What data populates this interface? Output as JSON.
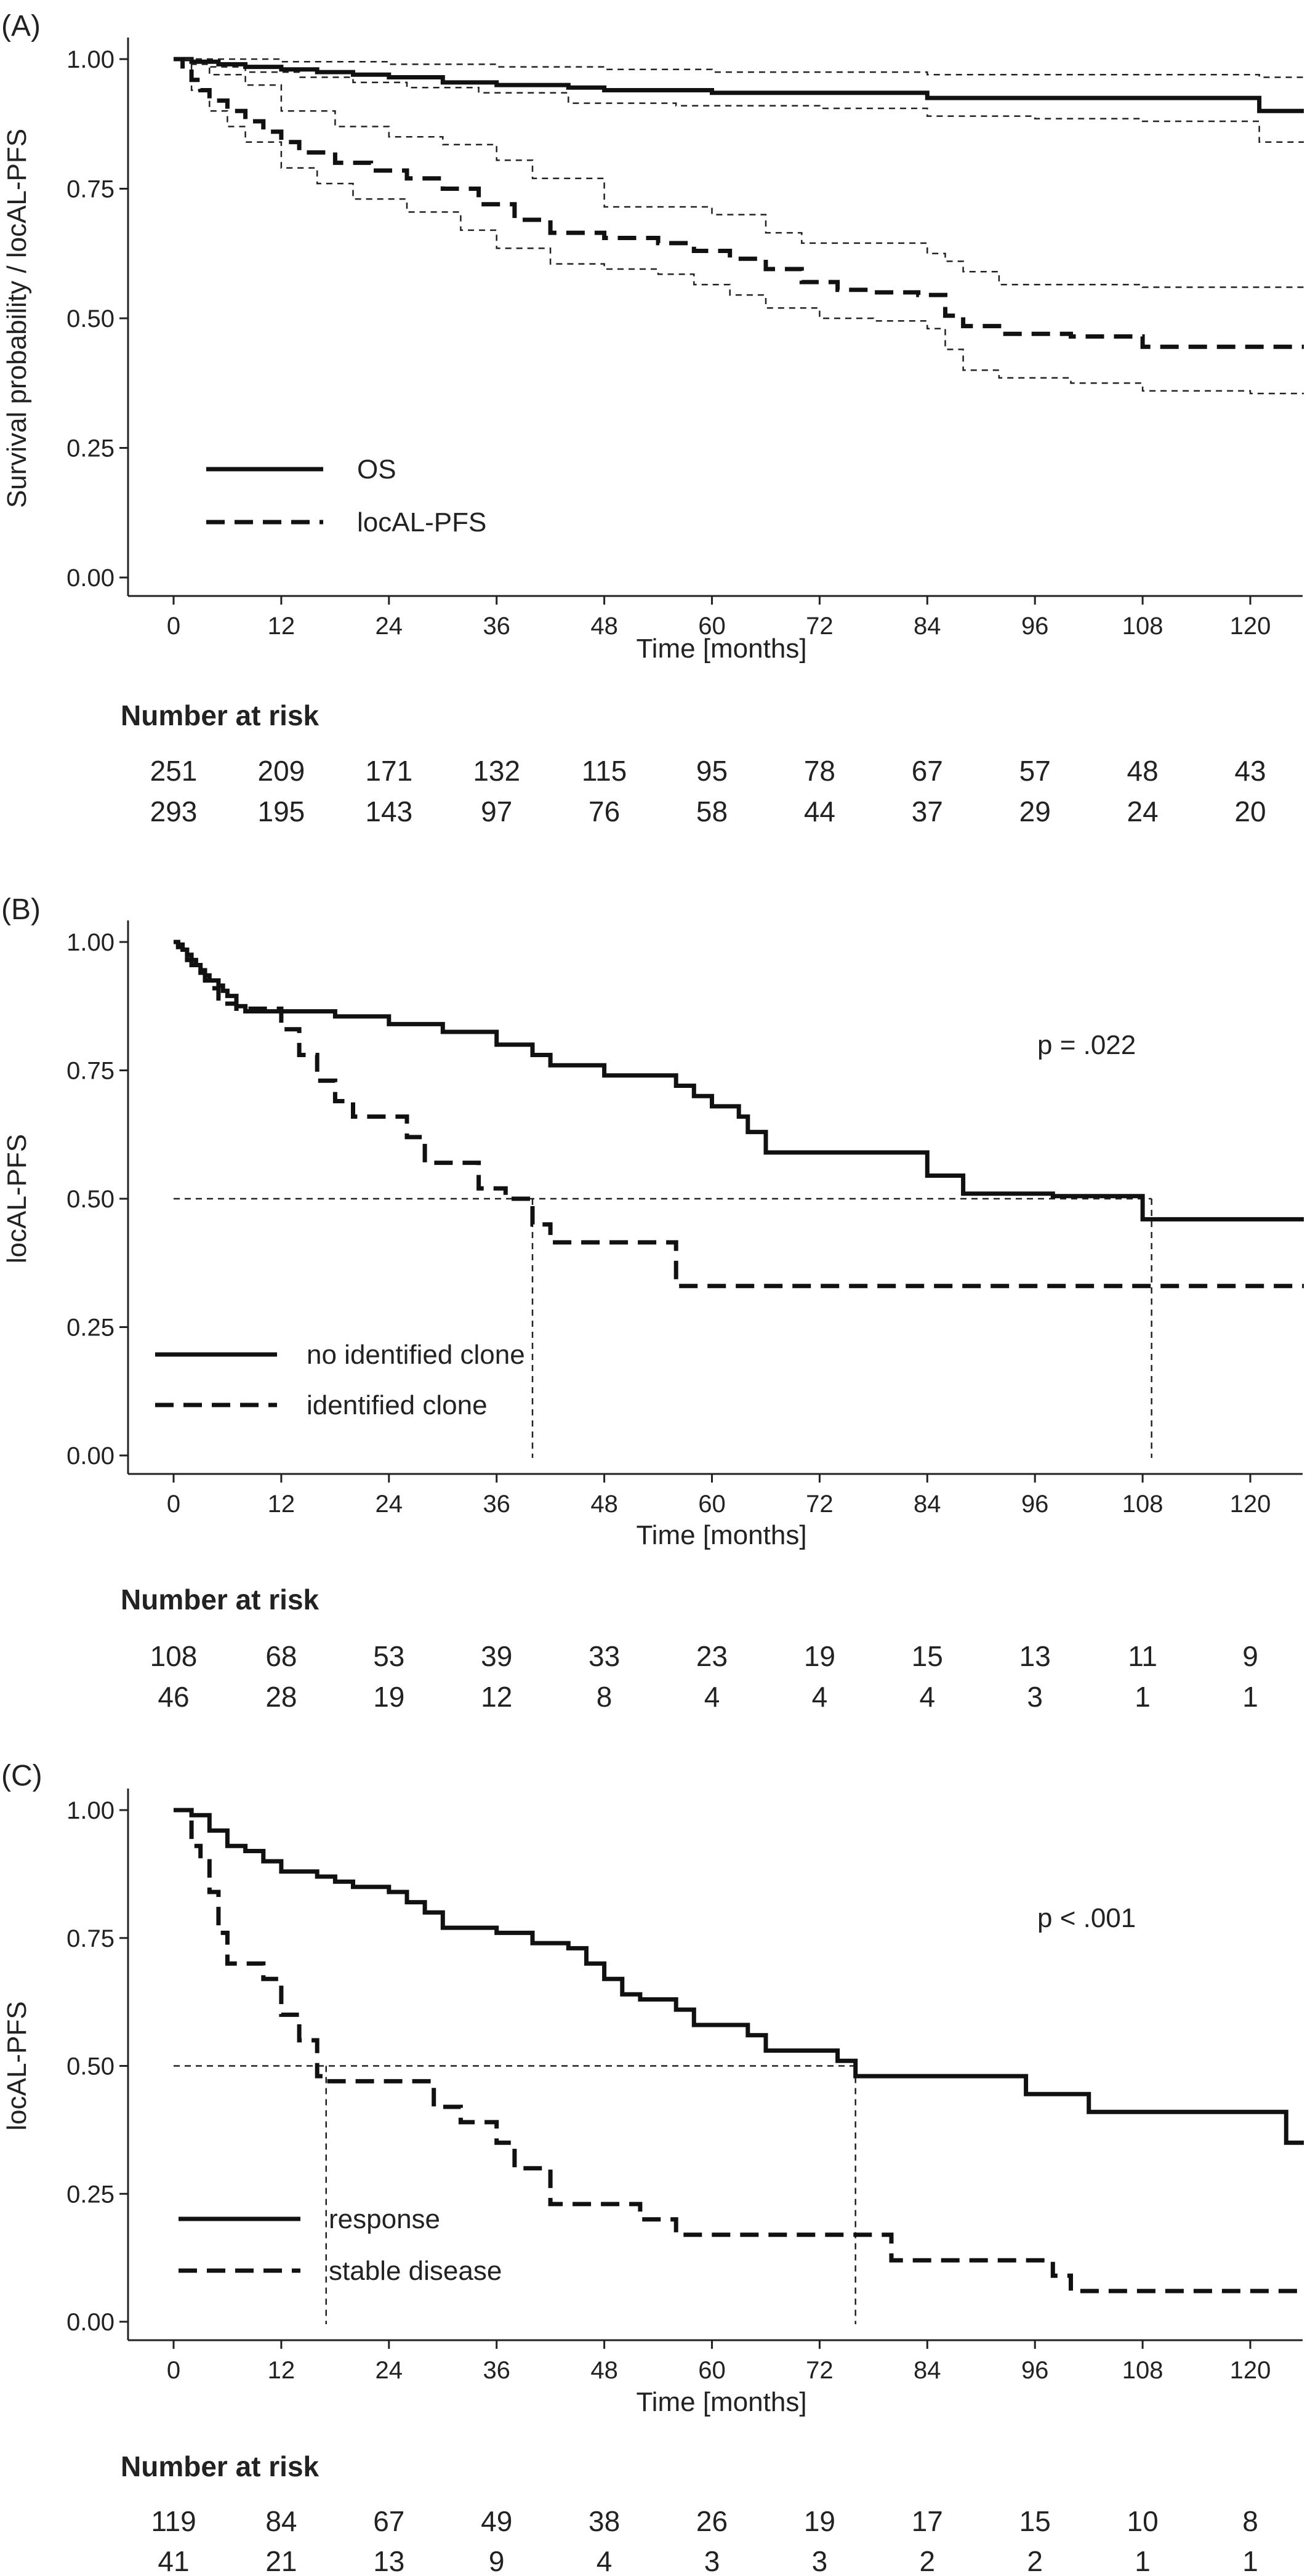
{
  "chart_data": [
    {
      "type": "line",
      "panel_label": "(A)",
      "xlabel": "Time [months]",
      "ylabel": "Survival probability / locAL-PFS",
      "xlim": [
        0,
        126
      ],
      "ylim": [
        0,
        1
      ],
      "x_ticks": [
        "0",
        "12",
        "24",
        "36",
        "48",
        "60",
        "72",
        "84",
        "96",
        "108",
        "120"
      ],
      "y_ticks": [
        "0.00",
        "0.25",
        "0.50",
        "0.75",
        "1.00"
      ],
      "grid": false,
      "legend_position": "bottom-left",
      "series": [
        {
          "name": "OS",
          "style": "solid",
          "steps": [
            [
              0,
              1.0
            ],
            [
              2,
              0.995
            ],
            [
              5,
              0.99
            ],
            [
              8,
              0.985
            ],
            [
              12,
              0.98
            ],
            [
              16,
              0.975
            ],
            [
              20,
              0.97
            ],
            [
              24,
              0.965
            ],
            [
              30,
              0.955
            ],
            [
              36,
              0.95
            ],
            [
              44,
              0.945
            ],
            [
              48,
              0.94
            ],
            [
              60,
              0.935
            ],
            [
              72,
              0.935
            ],
            [
              84,
              0.925
            ],
            [
              96,
              0.925
            ],
            [
              108,
              0.925
            ],
            [
              121,
              0.9
            ]
          ],
          "ci_lower": [
            [
              0,
              1.0
            ],
            [
              4,
              0.985
            ],
            [
              8,
              0.975
            ],
            [
              14,
              0.965
            ],
            [
              20,
              0.955
            ],
            [
              26,
              0.945
            ],
            [
              34,
              0.935
            ],
            [
              44,
              0.915
            ],
            [
              56,
              0.91
            ],
            [
              72,
              0.905
            ],
            [
              84,
              0.89
            ],
            [
              96,
              0.885
            ],
            [
              108,
              0.88
            ],
            [
              121,
              0.84
            ]
          ],
          "ci_upper": [
            [
              0,
              1.0
            ],
            [
              12,
              0.995
            ],
            [
              24,
              0.99
            ],
            [
              36,
              0.985
            ],
            [
              48,
              0.98
            ],
            [
              60,
              0.975
            ],
            [
              72,
              0.975
            ],
            [
              84,
              0.97
            ],
            [
              96,
              0.97
            ],
            [
              108,
              0.97
            ],
            [
              121,
              0.965
            ]
          ]
        },
        {
          "name": "locAL-PFS",
          "style": "dashed",
          "steps": [
            [
              0,
              1.0
            ],
            [
              1,
              0.98
            ],
            [
              2,
              0.96
            ],
            [
              3,
              0.94
            ],
            [
              4,
              0.92
            ],
            [
              6,
              0.9
            ],
            [
              8,
              0.88
            ],
            [
              10,
              0.86
            ],
            [
              12,
              0.84
            ],
            [
              14,
              0.82
            ],
            [
              18,
              0.8
            ],
            [
              22,
              0.785
            ],
            [
              26,
              0.77
            ],
            [
              30,
              0.75
            ],
            [
              34,
              0.72
            ],
            [
              38,
              0.69
            ],
            [
              42,
              0.665
            ],
            [
              48,
              0.655
            ],
            [
              54,
              0.645
            ],
            [
              58,
              0.63
            ],
            [
              62,
              0.615
            ],
            [
              66,
              0.595
            ],
            [
              70,
              0.57
            ],
            [
              74,
              0.555
            ],
            [
              78,
              0.55
            ],
            [
              83,
              0.545
            ],
            [
              86,
              0.505
            ],
            [
              88,
              0.485
            ],
            [
              92,
              0.47
            ],
            [
              100,
              0.465
            ],
            [
              108,
              0.445
            ],
            [
              118,
              0.445
            ]
          ],
          "ci_lower": [
            [
              0,
              1.0
            ],
            [
              2,
              0.94
            ],
            [
              4,
              0.9
            ],
            [
              6,
              0.87
            ],
            [
              8,
              0.84
            ],
            [
              12,
              0.79
            ],
            [
              16,
              0.76
            ],
            [
              20,
              0.73
            ],
            [
              26,
              0.705
            ],
            [
              32,
              0.67
            ],
            [
              36,
              0.635
            ],
            [
              42,
              0.605
            ],
            [
              48,
              0.595
            ],
            [
              54,
              0.585
            ],
            [
              58,
              0.565
            ],
            [
              62,
              0.545
            ],
            [
              66,
              0.52
            ],
            [
              72,
              0.5
            ],
            [
              78,
              0.495
            ],
            [
              84,
              0.48
            ],
            [
              86,
              0.44
            ],
            [
              88,
              0.4
            ],
            [
              92,
              0.385
            ],
            [
              100,
              0.375
            ],
            [
              108,
              0.36
            ],
            [
              120,
              0.355
            ]
          ],
          "ci_upper": [
            [
              0,
              1.0
            ],
            [
              2,
              0.99
            ],
            [
              4,
              0.97
            ],
            [
              8,
              0.95
            ],
            [
              12,
              0.9
            ],
            [
              18,
              0.87
            ],
            [
              24,
              0.85
            ],
            [
              30,
              0.835
            ],
            [
              36,
              0.805
            ],
            [
              40,
              0.77
            ],
            [
              48,
              0.715
            ],
            [
              60,
              0.7
            ],
            [
              66,
              0.665
            ],
            [
              70,
              0.645
            ],
            [
              84,
              0.625
            ],
            [
              86,
              0.61
            ],
            [
              88,
              0.59
            ],
            [
              92,
              0.565
            ],
            [
              108,
              0.56
            ],
            [
              120,
              0.56
            ]
          ]
        }
      ],
      "risk_table": {
        "title": "Number at risk",
        "rows": [
          [
            "251",
            "209",
            "171",
            "132",
            "115",
            "95",
            "78",
            "67",
            "57",
            "48",
            "43"
          ],
          [
            "293",
            "195",
            "143",
            "97",
            "76",
            "58",
            "44",
            "37",
            "29",
            "24",
            "20"
          ]
        ]
      }
    },
    {
      "type": "line",
      "panel_label": "(B)",
      "xlabel": "Time [months]",
      "ylabel": "locAL-PFS",
      "xlim": [
        0,
        126
      ],
      "ylim": [
        0,
        1
      ],
      "x_ticks": [
        "0",
        "12",
        "24",
        "36",
        "48",
        "60",
        "72",
        "84",
        "96",
        "108",
        "120"
      ],
      "y_ticks": [
        "0.00",
        "0.25",
        "0.50",
        "0.75",
        "1.00"
      ],
      "grid": false,
      "legend_position": "bottom-left",
      "annotation": "p = .022",
      "median_lines": [
        40,
        109
      ],
      "series": [
        {
          "name": "no identified clone",
          "style": "solid",
          "steps": [
            [
              0,
              1.0
            ],
            [
              0.5,
              0.995
            ],
            [
              1,
              0.985
            ],
            [
              1.5,
              0.975
            ],
            [
              2,
              0.965
            ],
            [
              2.5,
              0.955
            ],
            [
              3,
              0.945
            ],
            [
              3.5,
              0.935
            ],
            [
              4,
              0.925
            ],
            [
              5,
              0.915
            ],
            [
              5.5,
              0.905
            ],
            [
              6,
              0.895
            ],
            [
              7,
              0.875
            ],
            [
              8,
              0.865
            ],
            [
              18,
              0.855
            ],
            [
              24,
              0.84
            ],
            [
              30,
              0.825
            ],
            [
              36,
              0.8
            ],
            [
              40,
              0.78
            ],
            [
              42,
              0.76
            ],
            [
              48,
              0.74
            ],
            [
              56,
              0.72
            ],
            [
              58,
              0.7
            ],
            [
              60,
              0.68
            ],
            [
              63,
              0.66
            ],
            [
              64,
              0.63
            ],
            [
              66,
              0.59
            ],
            [
              84,
              0.545
            ],
            [
              88,
              0.51
            ],
            [
              98,
              0.505
            ],
            [
              108,
              0.46
            ],
            [
              126,
              0.46
            ]
          ]
        },
        {
          "name": "identified clone",
          "style": "dashed",
          "steps": [
            [
              0,
              1.0
            ],
            [
              0.5,
              0.99
            ],
            [
              1,
              0.98
            ],
            [
              1.5,
              0.965
            ],
            [
              2,
              0.955
            ],
            [
              3,
              0.94
            ],
            [
              3.5,
              0.925
            ],
            [
              4,
              0.91
            ],
            [
              5,
              0.89
            ],
            [
              6,
              0.88
            ],
            [
              7,
              0.87
            ],
            [
              12,
              0.83
            ],
            [
              14,
              0.78
            ],
            [
              16,
              0.73
            ],
            [
              18,
              0.69
            ],
            [
              20,
              0.66
            ],
            [
              26,
              0.62
            ],
            [
              28,
              0.57
            ],
            [
              34,
              0.52
            ],
            [
              37,
              0.5
            ],
            [
              40,
              0.45
            ],
            [
              42,
              0.415
            ],
            [
              56,
              0.33
            ],
            [
              120,
              0.33
            ]
          ]
        }
      ],
      "risk_table": {
        "title": "Number at risk",
        "rows": [
          [
            "108",
            "68",
            "53",
            "39",
            "33",
            "23",
            "19",
            "15",
            "13",
            "11",
            "9"
          ],
          [
            "46",
            "28",
            "19",
            "12",
            "8",
            "4",
            "4",
            "4",
            "3",
            "1",
            "1"
          ]
        ]
      }
    },
    {
      "type": "line",
      "panel_label": "(C)",
      "xlabel": "Time [months]",
      "ylabel": "locAL-PFS",
      "xlim": [
        0,
        126
      ],
      "ylim": [
        0,
        1
      ],
      "x_ticks": [
        "0",
        "12",
        "24",
        "36",
        "48",
        "60",
        "72",
        "84",
        "96",
        "108",
        "120"
      ],
      "y_ticks": [
        "0.00",
        "0.25",
        "0.50",
        "0.75",
        "1.00"
      ],
      "grid": false,
      "legend_position": "bottom-left",
      "annotation": "p < .001",
      "median_lines": [
        17,
        76
      ],
      "series": [
        {
          "name": "response",
          "style": "solid",
          "steps": [
            [
              0,
              1.0
            ],
            [
              2,
              0.99
            ],
            [
              4,
              0.96
            ],
            [
              6,
              0.93
            ],
            [
              8,
              0.92
            ],
            [
              10,
              0.9
            ],
            [
              12,
              0.88
            ],
            [
              16,
              0.87
            ],
            [
              18,
              0.86
            ],
            [
              20,
              0.85
            ],
            [
              24,
              0.84
            ],
            [
              26,
              0.82
            ],
            [
              28,
              0.8
            ],
            [
              30,
              0.77
            ],
            [
              36,
              0.76
            ],
            [
              40,
              0.74
            ],
            [
              44,
              0.73
            ],
            [
              46,
              0.7
            ],
            [
              48,
              0.67
            ],
            [
              50,
              0.64
            ],
            [
              52,
              0.63
            ],
            [
              56,
              0.61
            ],
            [
              58,
              0.58
            ],
            [
              64,
              0.56
            ],
            [
              66,
              0.53
            ],
            [
              74,
              0.51
            ],
            [
              76,
              0.48
            ],
            [
              95,
              0.445
            ],
            [
              102,
              0.41
            ],
            [
              124,
              0.35
            ],
            [
              126,
              0.35
            ]
          ]
        },
        {
          "name": "stable disease",
          "style": "dashed",
          "steps": [
            [
              0,
              1.0
            ],
            [
              2,
              0.93
            ],
            [
              3,
              0.9
            ],
            [
              4,
              0.84
            ],
            [
              5,
              0.76
            ],
            [
              6,
              0.7
            ],
            [
              10,
              0.67
            ],
            [
              12,
              0.6
            ],
            [
              14,
              0.55
            ],
            [
              16,
              0.48
            ],
            [
              17,
              0.47
            ],
            [
              29,
              0.42
            ],
            [
              32,
              0.39
            ],
            [
              36,
              0.35
            ],
            [
              38,
              0.3
            ],
            [
              42,
              0.23
            ],
            [
              52,
              0.2
            ],
            [
              56,
              0.17
            ],
            [
              76,
              0.17
            ],
            [
              80,
              0.12
            ],
            [
              98,
              0.09
            ],
            [
              100,
              0.06
            ],
            [
              126,
              0.06
            ]
          ]
        }
      ],
      "risk_table": {
        "title": "Number at risk",
        "rows": [
          [
            "119",
            "84",
            "67",
            "49",
            "38",
            "26",
            "19",
            "17",
            "15",
            "10",
            "8"
          ],
          [
            "41",
            "21",
            "13",
            "9",
            "4",
            "3",
            "3",
            "2",
            "2",
            "1",
            "1"
          ]
        ]
      }
    }
  ]
}
